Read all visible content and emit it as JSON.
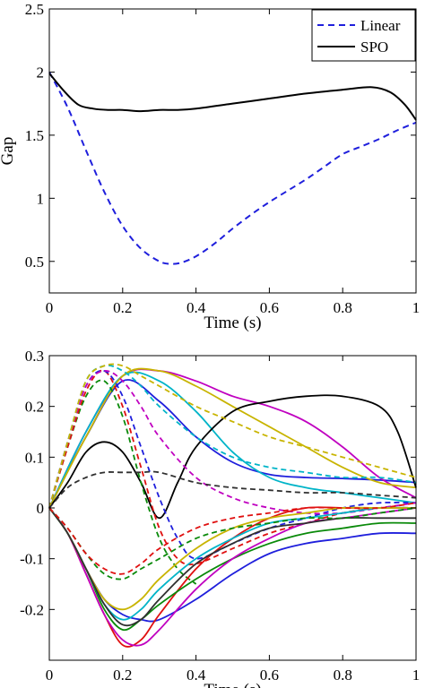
{
  "chart_data": [
    {
      "type": "line",
      "title": "",
      "xlabel": "Time (s)",
      "ylabel": "Gap",
      "xlim": [
        0,
        1
      ],
      "ylim": [
        0.25,
        2.5
      ],
      "xticks": [
        0,
        0.2,
        0.4,
        0.6,
        0.8,
        1
      ],
      "xtick_labels": [
        "0",
        "0.2",
        "0.4",
        "0.6",
        "0.8",
        "1"
      ],
      "yticks": [
        0.5,
        1,
        1.5,
        2,
        2.5
      ],
      "ytick_labels": [
        "0.5",
        "1",
        "1.5",
        "2",
        "2.5"
      ],
      "grid": false,
      "legend": "top-right",
      "series": [
        {
          "name": "Linear",
          "style": "dashed",
          "color": "#1f1fdc",
          "x": [
            0,
            0.05,
            0.1,
            0.15,
            0.2,
            0.25,
            0.3,
            0.33,
            0.36,
            0.4,
            0.45,
            0.5,
            0.55,
            0.6,
            0.65,
            0.7,
            0.75,
            0.8,
            0.85,
            0.9,
            0.95,
            1
          ],
          "y": [
            2.0,
            1.72,
            1.38,
            1.05,
            0.78,
            0.6,
            0.5,
            0.48,
            0.49,
            0.54,
            0.64,
            0.76,
            0.87,
            0.97,
            1.06,
            1.15,
            1.25,
            1.35,
            1.41,
            1.47,
            1.54,
            1.6
          ]
        },
        {
          "name": "SPO",
          "style": "solid",
          "color": "#000000",
          "x": [
            0,
            0.04,
            0.08,
            0.12,
            0.16,
            0.2,
            0.25,
            0.3,
            0.35,
            0.4,
            0.5,
            0.6,
            0.7,
            0.8,
            0.88,
            0.93,
            0.97,
            1
          ],
          "y": [
            1.99,
            1.85,
            1.74,
            1.71,
            1.7,
            1.7,
            1.69,
            1.7,
            1.7,
            1.71,
            1.75,
            1.79,
            1.83,
            1.86,
            1.88,
            1.84,
            1.74,
            1.62
          ]
        }
      ]
    },
    {
      "type": "line",
      "title": "",
      "xlabel": "Time (s)",
      "ylabel": "",
      "xlim": [
        0,
        1
      ],
      "ylim": [
        -0.3,
        0.3
      ],
      "xticks": [
        0,
        0.2,
        0.4,
        0.6,
        0.8,
        1
      ],
      "xtick_labels": [
        "0",
        "0.2",
        "0.4",
        "0.6",
        "0.8",
        "1"
      ],
      "yticks": [
        -0.2,
        -0.1,
        0,
        0.1,
        0.2,
        0.3
      ],
      "ytick_labels": [
        "-0.2",
        "-0.1",
        "0",
        "0.1",
        "0.2",
        "0.3"
      ],
      "grid": false,
      "legend": "none",
      "series": [
        {
          "color": "#1f1fdc",
          "style": "solid",
          "x": [
            0,
            0.1,
            0.2,
            0.3,
            0.4,
            0.5,
            0.6,
            0.7,
            0.8,
            0.9,
            1
          ],
          "y": [
            0,
            0.14,
            0.25,
            0.21,
            0.14,
            0.09,
            0.066,
            0.06,
            0.058,
            0.055,
            0.05
          ]
        },
        {
          "color": "#c000c0",
          "style": "solid",
          "x": [
            0,
            0.1,
            0.2,
            0.3,
            0.4,
            0.5,
            0.6,
            0.7,
            0.8,
            0.9,
            1
          ],
          "y": [
            0,
            0.15,
            0.26,
            0.27,
            0.25,
            0.22,
            0.2,
            0.17,
            0.12,
            0.06,
            0.02
          ]
        },
        {
          "color": "#00b4c8",
          "style": "solid",
          "x": [
            0,
            0.1,
            0.2,
            0.3,
            0.4,
            0.5,
            0.6,
            0.7,
            0.8,
            0.9,
            1
          ],
          "y": [
            0,
            0.15,
            0.26,
            0.25,
            0.19,
            0.11,
            0.06,
            0.04,
            0.03,
            0.02,
            0.01
          ]
        },
        {
          "color": "#c8b400",
          "style": "solid",
          "x": [
            0,
            0.1,
            0.2,
            0.3,
            0.4,
            0.5,
            0.6,
            0.7,
            0.8,
            0.9,
            1
          ],
          "y": [
            0,
            0.14,
            0.26,
            0.27,
            0.24,
            0.2,
            0.16,
            0.12,
            0.08,
            0.05,
            0.04
          ]
        },
        {
          "color": "#000000",
          "style": "solid",
          "x": [
            0,
            0.05,
            0.1,
            0.15,
            0.2,
            0.25,
            0.3,
            0.35,
            0.4,
            0.5,
            0.6,
            0.7,
            0.8,
            0.9,
            0.95,
            1
          ],
          "y": [
            0,
            0.05,
            0.11,
            0.13,
            0.11,
            0.05,
            -0.02,
            0.05,
            0.12,
            0.19,
            0.21,
            0.22,
            0.22,
            0.2,
            0.15,
            0.04
          ]
        },
        {
          "color": "#0a8a0a",
          "style": "dashed",
          "x": [
            0,
            0.05,
            0.1,
            0.15,
            0.2,
            0.25,
            0.3,
            0.35,
            0.4
          ],
          "y": [
            0,
            0.12,
            0.22,
            0.25,
            0.18,
            0.05,
            -0.06,
            -0.12,
            -0.15
          ]
        },
        {
          "color": "#e01010",
          "style": "dashed",
          "x": [
            0,
            0.05,
            0.1,
            0.15,
            0.2,
            0.25,
            0.3,
            0.35,
            0.4,
            0.5,
            0.6,
            0.7,
            0.8,
            0.9,
            1
          ],
          "y": [
            0,
            0.12,
            0.23,
            0.27,
            0.2,
            0.08,
            -0.04,
            -0.1,
            -0.11,
            -0.08,
            -0.05,
            -0.03,
            -0.01,
            0.0,
            0.0
          ]
        },
        {
          "color": "#1f1fdc",
          "style": "dashed",
          "x": [
            0,
            0.05,
            0.1,
            0.15,
            0.2,
            0.25,
            0.3,
            0.35,
            0.4,
            0.5,
            0.6,
            0.7,
            0.8,
            0.9,
            1
          ],
          "y": [
            0,
            0.13,
            0.24,
            0.27,
            0.22,
            0.12,
            0.02,
            -0.06,
            -0.1,
            -0.07,
            -0.04,
            -0.02,
            0.0,
            0.01,
            0.01
          ]
        },
        {
          "color": "#c000c0",
          "style": "dashed",
          "x": [
            0,
            0.05,
            0.1,
            0.15,
            0.2,
            0.25,
            0.3,
            0.4,
            0.5,
            0.6,
            0.7,
            0.8,
            0.9,
            1
          ],
          "y": [
            0,
            0.13,
            0.24,
            0.27,
            0.25,
            0.2,
            0.14,
            0.06,
            0.02,
            0.0,
            -0.01,
            -0.01,
            0.0,
            0.01
          ]
        },
        {
          "color": "#00b4c8",
          "style": "dashed",
          "x": [
            0,
            0.05,
            0.1,
            0.15,
            0.2,
            0.25,
            0.3,
            0.4,
            0.5,
            0.6,
            0.7,
            0.8,
            0.9,
            1
          ],
          "y": [
            0,
            0.13,
            0.25,
            0.28,
            0.27,
            0.24,
            0.2,
            0.14,
            0.1,
            0.08,
            0.07,
            0.06,
            0.06,
            0.05
          ]
        },
        {
          "color": "#c8b400",
          "style": "dashed",
          "x": [
            0,
            0.05,
            0.1,
            0.15,
            0.2,
            0.25,
            0.3,
            0.4,
            0.5,
            0.6,
            0.7,
            0.8,
            0.9,
            1
          ],
          "y": [
            0,
            0.13,
            0.25,
            0.28,
            0.28,
            0.26,
            0.24,
            0.2,
            0.17,
            0.14,
            0.12,
            0.1,
            0.08,
            0.06
          ]
        },
        {
          "color": "#303030",
          "style": "dashed",
          "x": [
            0,
            0.05,
            0.1,
            0.15,
            0.2,
            0.25,
            0.3,
            0.4,
            0.5,
            0.6,
            0.7,
            0.8,
            0.9,
            1
          ],
          "y": [
            0,
            0.04,
            0.06,
            0.07,
            0.07,
            0.07,
            0.07,
            0.05,
            0.04,
            0.035,
            0.03,
            0.03,
            0.025,
            0.02
          ]
        },
        {
          "color": "#1f1fdc",
          "style": "solid",
          "x": [
            0,
            0.05,
            0.1,
            0.15,
            0.2,
            0.25,
            0.3,
            0.4,
            0.5,
            0.6,
            0.7,
            0.8,
            0.9,
            1
          ],
          "y": [
            0,
            -0.05,
            -0.12,
            -0.18,
            -0.21,
            -0.22,
            -0.22,
            -0.18,
            -0.13,
            -0.09,
            -0.07,
            -0.06,
            -0.05,
            -0.05
          ]
        },
        {
          "color": "#e01010",
          "style": "solid",
          "x": [
            0,
            0.05,
            0.1,
            0.15,
            0.2,
            0.25,
            0.3,
            0.4,
            0.5,
            0.6,
            0.7,
            0.8,
            0.9,
            1
          ],
          "y": [
            0,
            -0.05,
            -0.13,
            -0.21,
            -0.27,
            -0.26,
            -0.21,
            -0.12,
            -0.06,
            -0.02,
            0.0,
            0.0,
            0.0,
            0.0
          ]
        },
        {
          "color": "#0a8a0a",
          "style": "solid",
          "x": [
            0,
            0.05,
            0.1,
            0.15,
            0.2,
            0.25,
            0.3,
            0.4,
            0.5,
            0.6,
            0.7,
            0.8,
            0.9,
            1
          ],
          "y": [
            0,
            -0.05,
            -0.12,
            -0.2,
            -0.24,
            -0.22,
            -0.19,
            -0.14,
            -0.1,
            -0.07,
            -0.05,
            -0.04,
            -0.03,
            -0.03
          ]
        },
        {
          "color": "#c000c0",
          "style": "solid",
          "x": [
            0,
            0.05,
            0.1,
            0.15,
            0.2,
            0.25,
            0.3,
            0.4,
            0.5,
            0.6,
            0.7,
            0.8,
            0.9,
            1
          ],
          "y": [
            0,
            -0.05,
            -0.13,
            -0.21,
            -0.26,
            -0.27,
            -0.24,
            -0.16,
            -0.1,
            -0.06,
            -0.03,
            -0.02,
            -0.01,
            0.0
          ]
        },
        {
          "color": "#00b4c8",
          "style": "solid",
          "x": [
            0,
            0.05,
            0.1,
            0.15,
            0.2,
            0.25,
            0.3,
            0.4,
            0.5,
            0.6,
            0.7,
            0.8,
            0.9,
            1
          ],
          "y": [
            0,
            -0.05,
            -0.12,
            -0.19,
            -0.22,
            -0.2,
            -0.16,
            -0.1,
            -0.06,
            -0.03,
            -0.02,
            -0.01,
            0.0,
            0.0
          ]
        },
        {
          "color": "#c8b400",
          "style": "solid",
          "x": [
            0,
            0.05,
            0.1,
            0.15,
            0.2,
            0.25,
            0.3,
            0.4,
            0.5,
            0.6,
            0.7,
            0.8,
            0.9,
            1
          ],
          "y": [
            0,
            -0.05,
            -0.12,
            -0.18,
            -0.2,
            -0.18,
            -0.14,
            -0.08,
            -0.04,
            -0.02,
            -0.01,
            0.0,
            0.0,
            0.0
          ]
        },
        {
          "color": "#303030",
          "style": "solid",
          "x": [
            0,
            0.05,
            0.1,
            0.15,
            0.2,
            0.25,
            0.3,
            0.4,
            0.5,
            0.6,
            0.7,
            0.8,
            0.9,
            1
          ],
          "y": [
            0,
            -0.05,
            -0.12,
            -0.19,
            -0.23,
            -0.22,
            -0.18,
            -0.11,
            -0.07,
            -0.04,
            -0.03,
            -0.02,
            -0.02,
            -0.02
          ]
        },
        {
          "color": "#0a8a0a",
          "style": "dashed",
          "x": [
            0,
            0.05,
            0.1,
            0.15,
            0.2,
            0.25,
            0.3,
            0.4,
            0.5,
            0.6,
            0.7,
            0.8,
            0.9,
            1
          ],
          "y": [
            0,
            -0.04,
            -0.09,
            -0.13,
            -0.14,
            -0.12,
            -0.1,
            -0.06,
            -0.04,
            -0.03,
            -0.02,
            -0.02,
            -0.01,
            0.0
          ]
        },
        {
          "color": "#e01010",
          "style": "dashed",
          "x": [
            0,
            0.05,
            0.1,
            0.15,
            0.2,
            0.25,
            0.3,
            0.4,
            0.5,
            0.6,
            0.7,
            0.8,
            0.9,
            1
          ],
          "y": [
            0,
            -0.04,
            -0.09,
            -0.12,
            -0.13,
            -0.11,
            -0.08,
            -0.04,
            -0.02,
            -0.01,
            0.0,
            0.0,
            0.0,
            0.01
          ]
        }
      ]
    }
  ]
}
